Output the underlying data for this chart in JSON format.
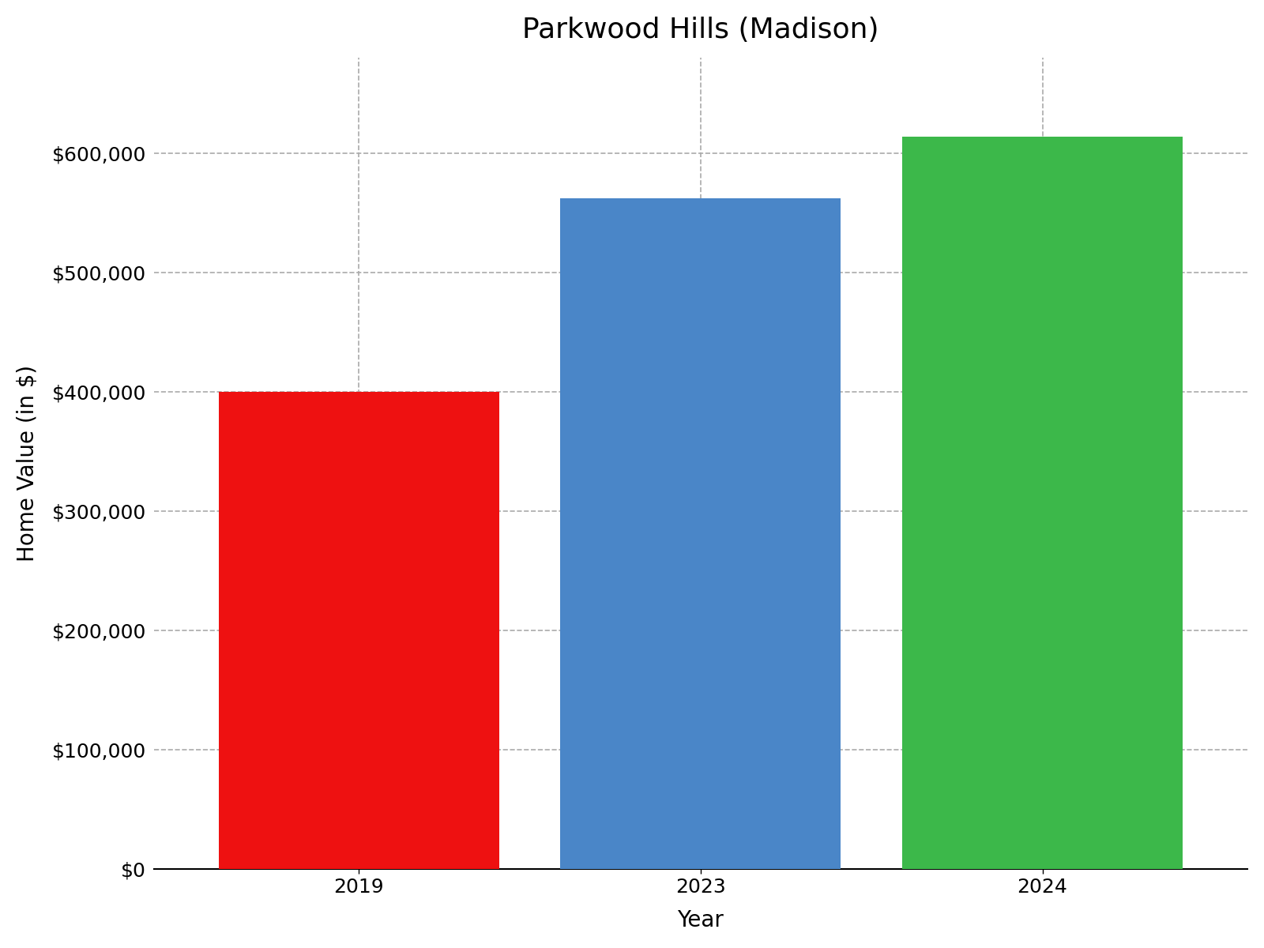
{
  "title": "Parkwood Hills (Madison)",
  "categories": [
    "2019",
    "2023",
    "2024"
  ],
  "values": [
    400000,
    562000,
    614000
  ],
  "bar_colors": [
    "#ee1111",
    "#4a86c8",
    "#3cb84a"
  ],
  "xlabel": "Year",
  "ylabel": "Home Value (in $)",
  "ylim": [
    0,
    680000
  ],
  "yticks": [
    0,
    100000,
    200000,
    300000,
    400000,
    500000,
    600000
  ],
  "background_color": "#ffffff",
  "grid_color": "#aaaaaa",
  "title_fontsize": 26,
  "axis_label_fontsize": 20,
  "tick_fontsize": 18,
  "bar_width": 0.82
}
